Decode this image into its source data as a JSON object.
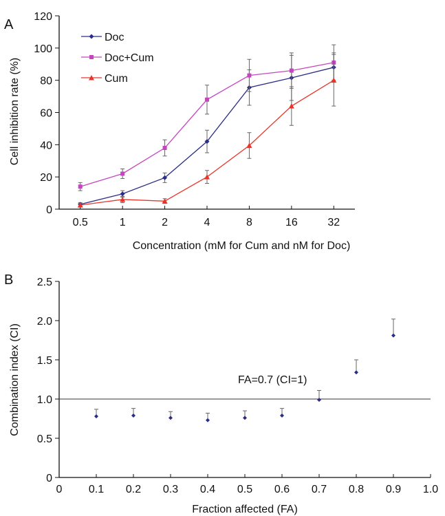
{
  "panels": {
    "a": {
      "label": "A"
    },
    "b": {
      "label": "B"
    }
  },
  "chart_data": [
    {
      "type": "line",
      "panel": "A",
      "title": "",
      "xlabel": "Concentration (mM for Cum and nM for Doc)",
      "ylabel": "Cell inhibition rate (%)",
      "categories": [
        "0.5",
        "1",
        "2",
        "4",
        "8",
        "16",
        "32"
      ],
      "ylim": [
        0,
        120
      ],
      "yticks": [
        0,
        20,
        40,
        60,
        80,
        100,
        120
      ],
      "grid": false,
      "legend": "top-left",
      "series": [
        {
          "name": "Doc",
          "color": "#2b2d86",
          "marker": "diamond",
          "values": [
            3,
            9.5,
            19.5,
            42,
            75.5,
            81.5,
            88
          ],
          "errors": [
            1,
            2,
            3,
            7,
            11,
            14,
            9
          ]
        },
        {
          "name": "Doc+Cum",
          "color": "#c545c0",
          "marker": "square",
          "values": [
            14,
            22,
            38,
            68,
            83,
            86,
            91
          ],
          "errors": [
            2.5,
            3,
            5,
            9,
            10,
            11,
            11
          ]
        },
        {
          "name": "Cum",
          "color": "#e8342a",
          "marker": "triangle",
          "values": [
            2.5,
            6,
            5,
            20,
            39.5,
            64,
            80
          ],
          "errors": [
            1,
            2,
            1.5,
            4,
            8,
            12,
            16
          ]
        }
      ]
    },
    {
      "type": "scatter",
      "panel": "B",
      "title": "",
      "xlabel": "Fraction affected (FA)",
      "ylabel": "Combination index (CI)",
      "xlim": [
        0,
        1.0
      ],
      "xticks": [
        "0",
        "0.1",
        "0.2",
        "0.3",
        "0.4",
        "0.5",
        "0.6",
        "0.7",
        "0.8",
        "0.9",
        "1.0"
      ],
      "ylim": [
        0,
        2.5
      ],
      "yticks": [
        "0",
        "0.5",
        "1.0",
        "1.5",
        "2.0",
        "2.5"
      ],
      "grid": false,
      "point_color": "#2b2d86",
      "reference_line": {
        "y": 1.0,
        "label": "FA=0.7 (CI=1)"
      },
      "points": [
        {
          "x": 0.1,
          "y": 0.78,
          "error": 0.09
        },
        {
          "x": 0.2,
          "y": 0.79,
          "error": 0.09
        },
        {
          "x": 0.3,
          "y": 0.76,
          "error": 0.08
        },
        {
          "x": 0.4,
          "y": 0.73,
          "error": 0.09
        },
        {
          "x": 0.5,
          "y": 0.76,
          "error": 0.09
        },
        {
          "x": 0.6,
          "y": 0.79,
          "error": 0.09
        },
        {
          "x": 0.7,
          "y": 0.99,
          "error": 0.12
        },
        {
          "x": 0.8,
          "y": 1.34,
          "error": 0.16
        },
        {
          "x": 0.9,
          "y": 1.81,
          "error": 0.21
        }
      ]
    }
  ]
}
